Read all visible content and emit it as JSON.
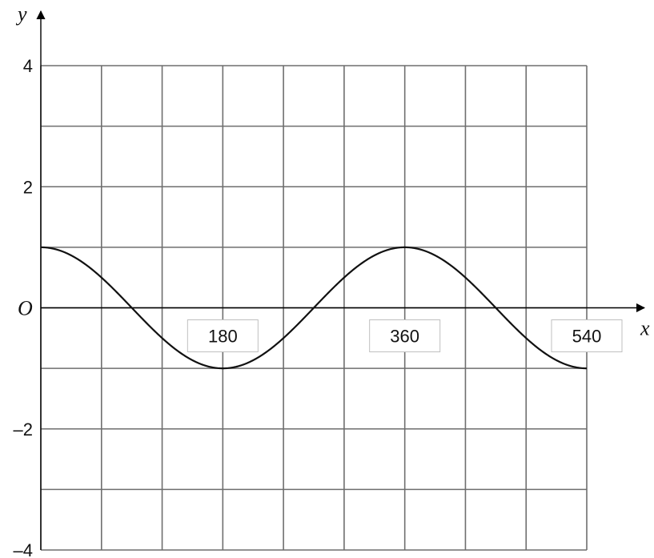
{
  "chart_data": {
    "type": "line",
    "xlabel": "x",
    "ylabel": "y",
    "origin_label": "O",
    "xlim": [
      0,
      540
    ],
    "ylim": [
      -4,
      4
    ],
    "x_grid_step": 60,
    "y_grid_step": 1,
    "grid": true,
    "y_tick_labels": [
      {
        "value": 4,
        "text": "4"
      },
      {
        "value": 2,
        "text": "2"
      },
      {
        "value": -2,
        "text": "–2"
      },
      {
        "value": -4,
        "text": "–4"
      }
    ],
    "x_tick_labels": [
      {
        "value": 180,
        "text": "180"
      },
      {
        "value": 360,
        "text": "360"
      },
      {
        "value": 540,
        "text": "540"
      }
    ],
    "series": [
      {
        "function": "cos",
        "x": [
          0,
          30,
          60,
          90,
          120,
          150,
          180,
          210,
          240,
          270,
          300,
          330,
          360,
          390,
          420,
          450,
          480,
          510,
          540
        ],
        "y": [
          1,
          0.866,
          0.5,
          0,
          -0.5,
          -0.866,
          -1,
          -0.866,
          -0.5,
          0,
          0.5,
          0.866,
          1,
          0.866,
          0.5,
          0,
          -0.5,
          -0.866,
          -1
        ]
      }
    ]
  }
}
